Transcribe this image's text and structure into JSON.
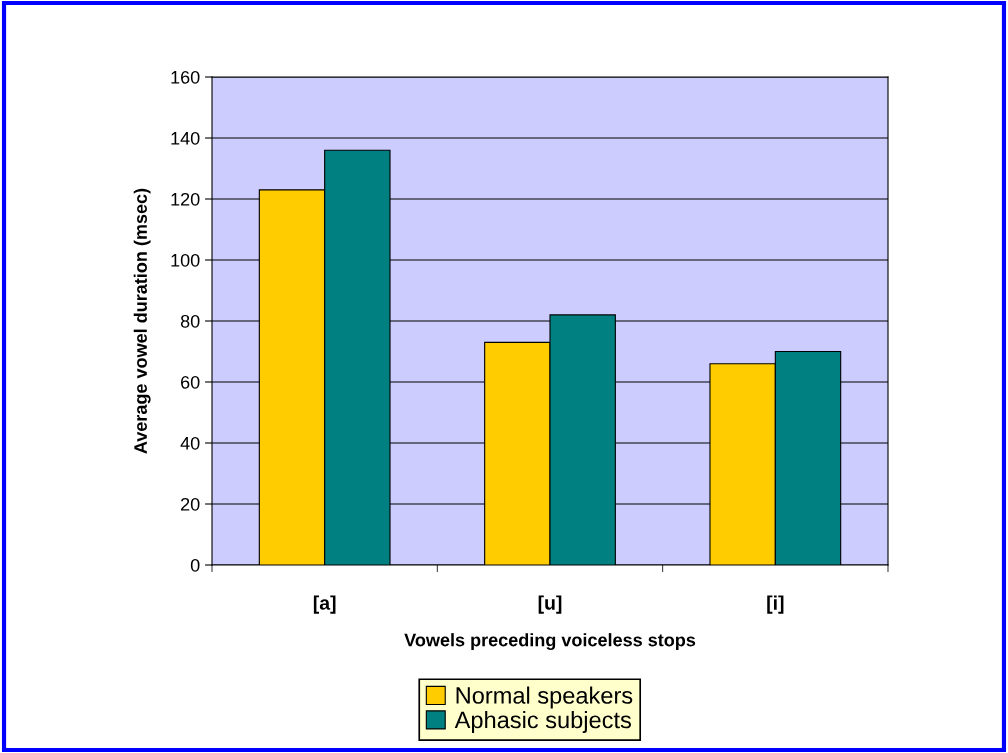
{
  "chart_data": {
    "type": "bar",
    "xlabel": "Vowels preceding voiceless stops",
    "ylabel": "Average vowel duration (msec)",
    "categories": [
      "[a]",
      "[u]",
      "[i]"
    ],
    "series": [
      {
        "name": "Normal speakers",
        "color": "#ffcc00",
        "values": [
          123,
          73,
          66
        ]
      },
      {
        "name": "Aphasic subjects",
        "color": "#008080",
        "values": [
          136,
          82,
          70
        ]
      }
    ],
    "ylim": [
      0,
      160
    ],
    "yticks": [
      0,
      20,
      40,
      60,
      80,
      100,
      120,
      140,
      160
    ],
    "grid": "y",
    "legend": "bottom"
  }
}
